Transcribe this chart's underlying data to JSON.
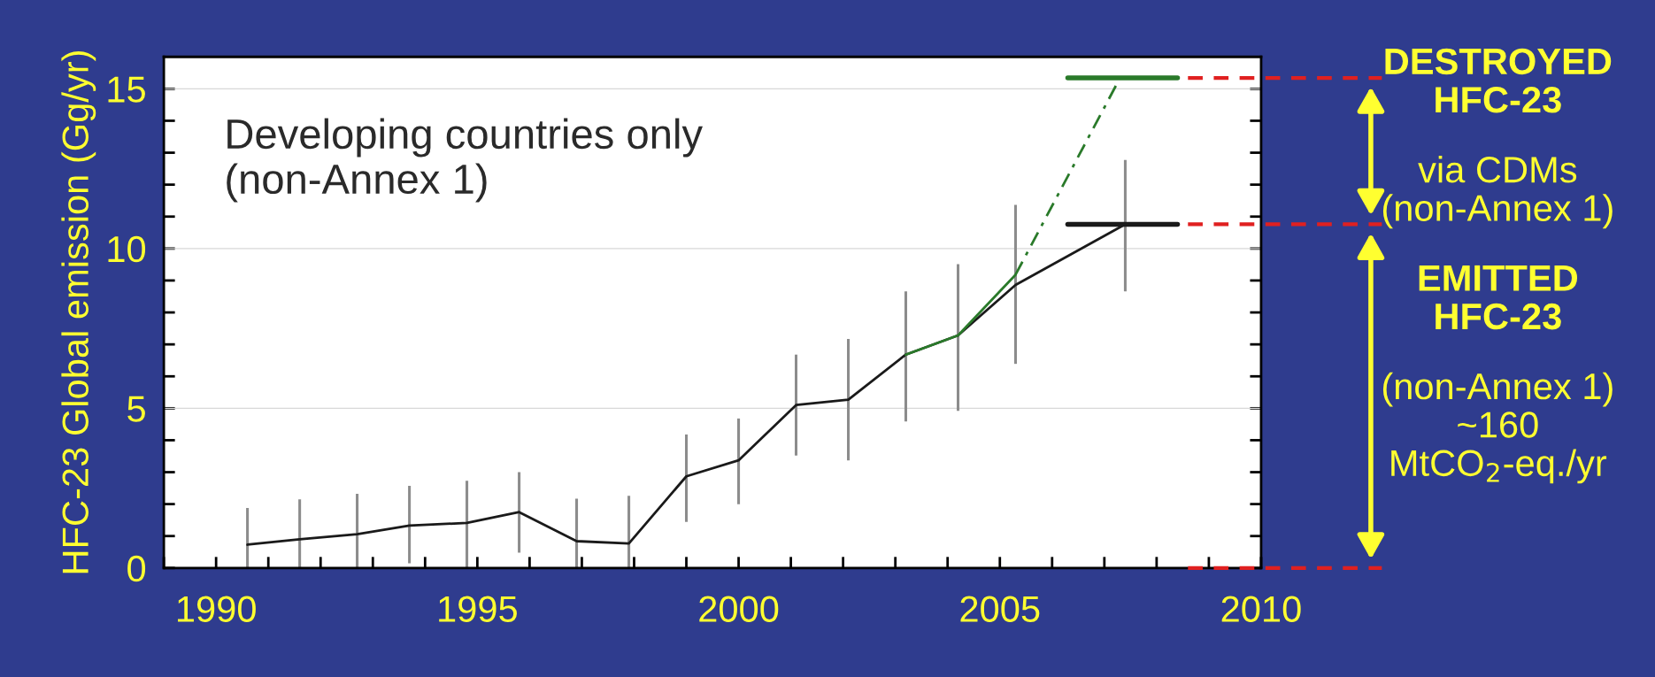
{
  "chart_data": {
    "type": "line",
    "ylabel": "HFC-23 Global emission (Gg/yr)",
    "xlim": [
      1989,
      2010
    ],
    "ylim": [
      0,
      16
    ],
    "xticks": [
      {
        "value": 1989,
        "label": null
      },
      1990,
      {
        "value": 1991,
        "label": null
      },
      {
        "value": 1992,
        "label": null
      },
      {
        "value": 1993,
        "label": null
      },
      {
        "value": 1994,
        "label": null
      },
      1995,
      {
        "value": 1996,
        "label": null
      },
      {
        "value": 1997,
        "label": null
      },
      {
        "value": 1998,
        "label": null
      },
      {
        "value": 1999,
        "label": null
      },
      2000,
      {
        "value": 2001,
        "label": null
      },
      {
        "value": 2002,
        "label": null
      },
      {
        "value": 2003,
        "label": null
      },
      {
        "value": 2004,
        "label": null
      },
      2005,
      {
        "value": 2006,
        "label": null
      },
      {
        "value": 2007,
        "label": null
      },
      {
        "value": 2008,
        "label": null
      },
      {
        "value": 2009,
        "label": null
      },
      2010
    ],
    "yticks": [
      0,
      {
        "value": 1,
        "label": null
      },
      {
        "value": 2,
        "label": null
      },
      {
        "value": 3,
        "label": null
      },
      {
        "value": 4,
        "label": null
      },
      5,
      {
        "value": 6,
        "label": null
      },
      {
        "value": 7,
        "label": null
      },
      {
        "value": 8,
        "label": null
      },
      {
        "value": 9,
        "label": null
      },
      10,
      {
        "value": 11,
        "label": null
      },
      {
        "value": 12,
        "label": null
      },
      {
        "value": 13,
        "label": null
      },
      {
        "value": 14,
        "label": null
      },
      15
    ],
    "grid": "y",
    "series": [
      {
        "color": "#1a1a1a",
        "x": [
          1990.6,
          1991.6,
          1992.7,
          1993.7,
          1994.8,
          1995.8,
          1996.9,
          1997.9,
          1999.0,
          2000.0,
          2001.1,
          2002.1,
          2003.2,
          2004.2,
          2005.3,
          2007.4
        ],
        "values": [
          0.73,
          0.9,
          1.06,
          1.33,
          1.41,
          1.75,
          0.84,
          0.77,
          2.87,
          3.37,
          5.1,
          5.27,
          6.68,
          7.28,
          8.86,
          10.76
        ],
        "errors": [
          [
            0,
            1.88
          ],
          [
            0,
            2.15
          ],
          [
            0,
            2.32
          ],
          [
            0.15,
            2.57
          ],
          [
            0,
            2.73
          ],
          [
            0.48,
            3.0
          ],
          [
            0,
            2.17
          ],
          [
            0,
            2.26
          ],
          [
            1.44,
            4.18
          ],
          [
            2.0,
            4.68
          ],
          [
            3.52,
            6.68
          ],
          [
            3.37,
            7.17
          ],
          [
            4.59,
            8.66
          ],
          [
            4.92,
            9.51
          ],
          [
            6.39,
            11.37
          ],
          [
            8.66,
            12.77
          ]
        ]
      },
      {
        "color": "#2a7a2a",
        "x": [
          2003.2,
          2004.2,
          2005.3
        ],
        "values": [
          6.68,
          7.28,
          9.18
        ]
      },
      {
        "color": "#2a7a2a",
        "line_style": "dashed",
        "x": [
          2005.3,
          2007.3
        ],
        "values": [
          9.18,
          15.34
        ]
      },
      {
        "color": "#2a7a2a",
        "x": [
          2006.3,
          2008.4
        ],
        "values": [
          15.34,
          15.34
        ]
      },
      {
        "color": "#1a1a1a",
        "x": [
          2006.3,
          2008.4
        ],
        "values": [
          10.76,
          10.76
        ]
      },
      {
        "color": "#e02020",
        "line_style": "dashed",
        "x": [
          2008.6,
          2010
        ],
        "values": [
          15.34,
          15.34
        ]
      },
      {
        "color": "#e02020",
        "line_style": "dashed",
        "x": [
          2008.6,
          2010
        ],
        "values": [
          10.76,
          10.76
        ]
      },
      {
        "color": "#e02020",
        "line_style": "dashed",
        "x": [
          2008.6,
          2010
        ],
        "values": [
          0,
          0
        ]
      }
    ],
    "annotations": [
      "Developing countries only\n(non-Annex 1)",
      "DESTROYED\nHFC-23",
      "via CDMs\n(non-Annex 1)",
      "EMITTED\nHFC-23",
      "(non-Annex 1)\n~160\nMtCO$_{2}$-eq./yr"
    ]
  }
}
